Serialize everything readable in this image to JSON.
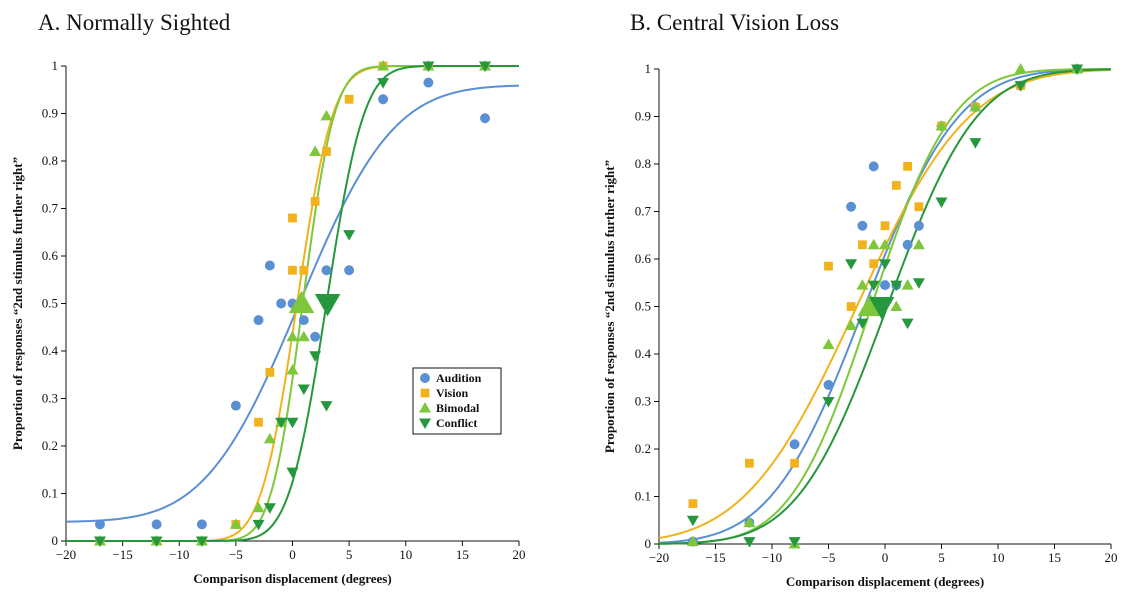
{
  "colors": {
    "Audition": "#5b8fd4",
    "Vision": "#f2b21d",
    "Bimodal": "#7ec73b",
    "Conflict": "#25973c"
  },
  "chart_data": [
    {
      "type": "scatter",
      "title": "A. Normally Sighted",
      "xlabel": "Comparison displacement (degrees)",
      "ylabel": "Proportion of responses “2nd stimulus further right”",
      "xlim": [
        -20,
        20
      ],
      "ylim": [
        0,
        1
      ],
      "xticks": [
        -20,
        -15,
        -10,
        -5,
        0,
        5,
        10,
        15,
        20
      ],
      "xtick_labels": [
        "−20",
        "−15",
        "−10",
        "−5",
        "0",
        "5",
        "10",
        "15",
        "20"
      ],
      "yticks": [
        0,
        0.1,
        0.2,
        0.3,
        0.4,
        0.5,
        0.6,
        0.7,
        0.8,
        0.9,
        1
      ],
      "ytick_labels": [
        "0",
        "0.1",
        "0.2",
        "0.3",
        "0.4",
        "0.5",
        "0.6",
        "0.7",
        "0.8",
        "0.9",
        "1"
      ],
      "legend": {
        "placement": "inside-right",
        "entries": [
          "Audition",
          "Vision",
          "Bimodal",
          "Conflict"
        ]
      },
      "series": [
        {
          "name": "Audition",
          "marker": "circle",
          "fit": {
            "mu": 0.6,
            "sigma": 6.5,
            "lower": 0.04,
            "upper": 0.96
          },
          "points": [
            [
              -17,
              0.035
            ],
            [
              -12,
              0.035
            ],
            [
              -8,
              0.035
            ],
            [
              -5,
              0.285
            ],
            [
              -3,
              0.465
            ],
            [
              -2,
              0.58
            ],
            [
              -1,
              0.5
            ],
            [
              0,
              0.5
            ],
            [
              1,
              0.465
            ],
            [
              2,
              0.43
            ],
            [
              3,
              0.57
            ],
            [
              5,
              0.57
            ],
            [
              8,
              0.93
            ],
            [
              12,
              0.965
            ],
            [
              17,
              0.89
            ]
          ]
        },
        {
          "name": "Vision",
          "marker": "square",
          "fit": {
            "mu": 0.4,
            "sigma": 2.5,
            "lower": 0,
            "upper": 1
          },
          "points": [
            [
              -17,
              0
            ],
            [
              -12,
              0
            ],
            [
              -8,
              0
            ],
            [
              -5,
              0.035
            ],
            [
              -3,
              0.25
            ],
            [
              -2,
              0.355
            ],
            [
              0,
              0.68
            ],
            [
              0,
              0.57
            ],
            [
              1,
              0.57
            ],
            [
              2,
              0.715
            ],
            [
              3,
              0.82
            ],
            [
              5,
              0.93
            ],
            [
              8,
              1
            ],
            [
              12,
              1
            ],
            [
              17,
              1
            ]
          ]
        },
        {
          "name": "Bimodal",
          "marker": "triangle-up",
          "fit": {
            "mu": 0.9,
            "sigma": 2.2,
            "lower": 0,
            "upper": 1
          },
          "points": [
            [
              -17,
              0
            ],
            [
              -12,
              0
            ],
            [
              -8,
              0
            ],
            [
              -5,
              0.035
            ],
            [
              -3,
              0.07
            ],
            [
              -2,
              0.215
            ],
            [
              -1,
              0.25
            ],
            [
              0,
              0.36
            ],
            [
              0,
              0.43
            ],
            [
              1,
              0.43
            ],
            [
              2,
              0.82
            ],
            [
              3,
              0.895
            ],
            [
              8,
              1
            ],
            [
              12,
              1
            ],
            [
              17,
              1
            ]
          ]
        },
        {
          "name": "Conflict",
          "marker": "triangle-down",
          "fit": {
            "mu": 3.0,
            "sigma": 2.6,
            "lower": 0,
            "upper": 1
          },
          "points": [
            [
              -17,
              0
            ],
            [
              -12,
              0
            ],
            [
              -8,
              0
            ],
            [
              -3,
              0.035
            ],
            [
              -2,
              0.07
            ],
            [
              -1,
              0.25
            ],
            [
              0,
              0.25
            ],
            [
              0,
              0.145
            ],
            [
              1,
              0.32
            ],
            [
              2,
              0.39
            ],
            [
              3,
              0.285
            ],
            [
              5,
              0.645
            ],
            [
              8,
              0.965
            ],
            [
              12,
              1
            ],
            [
              17,
              1
            ]
          ]
        }
      ],
      "pse_markers": [
        {
          "series": "Bimodal",
          "x": 0.8,
          "y": 0.5,
          "marker": "triangle-up"
        },
        {
          "series": "Conflict",
          "x": 3.1,
          "y": 0.5,
          "marker": "triangle-down"
        }
      ]
    },
    {
      "type": "scatter",
      "title": "B. Central Vision Loss",
      "xlabel": "Comparison displacement (degrees)",
      "ylabel": "Proportion of responses “2nd stimulus further right”",
      "xlim": [
        -20,
        20
      ],
      "ylim": [
        0,
        1
      ],
      "xticks": [
        -20,
        -15,
        -10,
        -5,
        0,
        5,
        10,
        15,
        20
      ],
      "xtick_labels": [
        "−20",
        "−15",
        "−10",
        "−5",
        "0",
        "5",
        "10",
        "15",
        "20"
      ],
      "yticks": [
        0,
        0.1,
        0.2,
        0.3,
        0.4,
        0.5,
        0.6,
        0.7,
        0.8,
        0.9,
        1
      ],
      "ytick_labels": [
        "0",
        "0.1",
        "0.2",
        "0.3",
        "0.4",
        "0.5",
        "0.6",
        "0.7",
        "0.8",
        "0.9",
        "1"
      ],
      "series": [
        {
          "name": "Audition",
          "marker": "circle",
          "fit": {
            "mu": -1.8,
            "sigma": 6.5,
            "lower": 0,
            "upper": 1
          },
          "points": [
            [
              -17,
              0.005
            ],
            [
              -12,
              0.045
            ],
            [
              -8,
              0.21
            ],
            [
              -5,
              0.335
            ],
            [
              -3,
              0.71
            ],
            [
              -2,
              0.67
            ],
            [
              -1,
              0.795
            ],
            [
              0,
              0.545
            ],
            [
              1,
              0.545
            ],
            [
              2,
              0.63
            ],
            [
              3,
              0.67
            ],
            [
              5,
              0.88
            ],
            [
              8,
              0.92
            ],
            [
              12,
              0.965
            ],
            [
              17,
              1
            ]
          ]
        },
        {
          "name": "Vision",
          "marker": "square",
          "fit": {
            "mu": -2.5,
            "sigma": 7.8,
            "lower": 0,
            "upper": 1
          },
          "points": [
            [
              -17,
              0.085
            ],
            [
              -12,
              0.17
            ],
            [
              -8,
              0.17
            ],
            [
              -5,
              0.585
            ],
            [
              -3,
              0.5
            ],
            [
              -2,
              0.63
            ],
            [
              -1,
              0.59
            ],
            [
              0,
              0.67
            ],
            [
              1,
              0.755
            ],
            [
              2,
              0.795
            ],
            [
              3,
              0.71
            ],
            [
              5,
              0.88
            ],
            [
              8,
              0.92
            ],
            [
              12,
              0.965
            ],
            [
              17,
              1
            ]
          ]
        },
        {
          "name": "Bimodal",
          "marker": "triangle-up",
          "fit": {
            "mu": -1.2,
            "sigma": 5.6,
            "lower": 0,
            "upper": 1
          },
          "points": [
            [
              -17,
              0.005
            ],
            [
              -12,
              0.045
            ],
            [
              -8,
              0
            ],
            [
              -5,
              0.42
            ],
            [
              -3,
              0.46
            ],
            [
              -2,
              0.545
            ],
            [
              -1,
              0.63
            ],
            [
              0,
              0.63
            ],
            [
              1,
              0.5
            ],
            [
              2,
              0.545
            ],
            [
              3,
              0.63
            ],
            [
              5,
              0.88
            ],
            [
              8,
              0.92
            ],
            [
              12,
              1
            ],
            [
              17,
              1
            ]
          ]
        },
        {
          "name": "Conflict",
          "marker": "triangle-down",
          "fit": {
            "mu": 0.2,
            "sigma": 6.2,
            "lower": 0,
            "upper": 1
          },
          "points": [
            [
              -17,
              0.05
            ],
            [
              -12,
              0.005
            ],
            [
              -8,
              0.005
            ],
            [
              -5,
              0.3
            ],
            [
              -3,
              0.59
            ],
            [
              -2,
              0.465
            ],
            [
              -1,
              0.545
            ],
            [
              0,
              0.59
            ],
            [
              1,
              0.545
            ],
            [
              2,
              0.465
            ],
            [
              3,
              0.55
            ],
            [
              5,
              0.72
            ],
            [
              8,
              0.845
            ],
            [
              12,
              0.965
            ],
            [
              17,
              1
            ]
          ]
        }
      ],
      "pse_markers": [
        {
          "series": "Bimodal",
          "x": -1.3,
          "y": 0.5,
          "marker": "triangle-up"
        },
        {
          "series": "Conflict",
          "x": -0.3,
          "y": 0.5,
          "marker": "triangle-down"
        }
      ]
    }
  ]
}
